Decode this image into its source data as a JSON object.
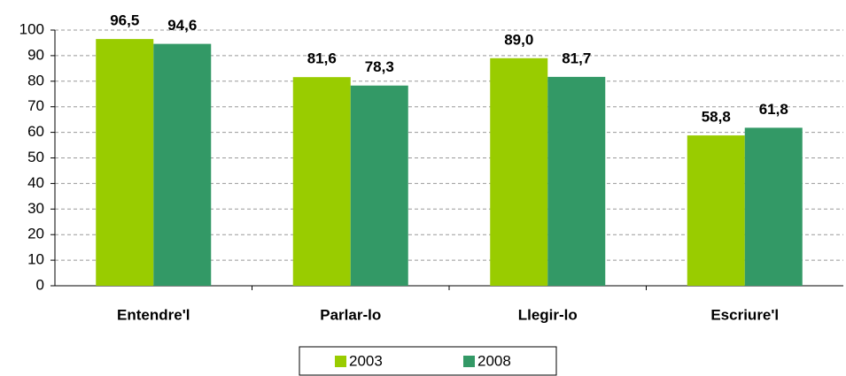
{
  "chart_data": {
    "type": "bar",
    "categories": [
      "Entendre'l",
      "Parlar-lo",
      "Llegir-lo",
      "Escriure'l"
    ],
    "series": [
      {
        "name": "2003",
        "color": "#99cc00",
        "values": [
          96.5,
          81.6,
          89.0,
          58.8
        ],
        "value_labels": [
          "96,5",
          "81,6",
          "89,0",
          "58,8"
        ]
      },
      {
        "name": "2008",
        "color": "#339966",
        "values": [
          94.6,
          78.3,
          81.7,
          61.8
        ],
        "value_labels": [
          "94,6",
          "78,3",
          "81,7",
          "61,8"
        ]
      }
    ],
    "ylim": [
      0,
      100
    ],
    "yticks": [
      0,
      10,
      20,
      30,
      40,
      50,
      60,
      70,
      80,
      90,
      100
    ],
    "grid": true,
    "legend": "bottom"
  }
}
